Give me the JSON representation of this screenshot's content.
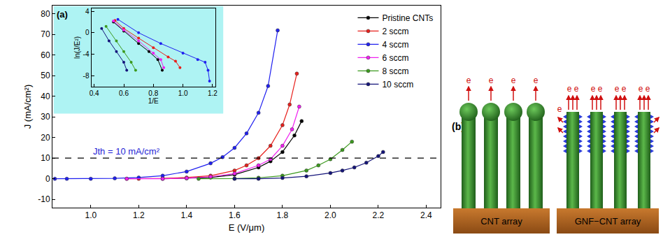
{
  "chart_data": [
    {
      "type": "line",
      "panel_label": "(a)",
      "x_label": "E (V/μm)",
      "y_label": "J (mA/cm²)",
      "xlim": [
        0.84,
        2.46
      ],
      "xticks": [
        {
          "value": 1,
          "label": "1.0"
        },
        1.2,
        1.4,
        1.6,
        1.8,
        {
          "value": 2,
          "label": "2.0"
        },
        2.2,
        2.4
      ],
      "ylim": [
        -14,
        84
      ],
      "yticks": [
        -10,
        0,
        10,
        20,
        30,
        40,
        50,
        60,
        70,
        80
      ],
      "grid": false,
      "legend": "upper right",
      "marker": "circle",
      "reference_line": {
        "y": 10,
        "label": "Jth = 10 mA/cm²",
        "color": "#1f1fd6"
      },
      "series": [
        {
          "name": "Pristine CNTs",
          "color": "#000000",
          "x": [
            1.3,
            1.4,
            1.5,
            1.6,
            1.7,
            1.75,
            1.8,
            1.85,
            1.88
          ],
          "values": [
            0,
            0.2,
            0.6,
            2,
            5.5,
            8.5,
            13,
            21,
            28
          ]
        },
        {
          "name": "2 sccm",
          "color": "#e8201c",
          "x": [
            1.15,
            1.2,
            1.3,
            1.4,
            1.5,
            1.6,
            1.65,
            1.7,
            1.75,
            1.8,
            1.83,
            1.86
          ],
          "values": [
            0,
            0,
            0.2,
            0.6,
            1.5,
            4,
            6.5,
            10,
            16,
            26,
            36,
            51
          ]
        },
        {
          "name": "4 sccm",
          "color": "#2020f0",
          "x": [
            0.85,
            0.9,
            1.0,
            1.1,
            1.2,
            1.3,
            1.4,
            1.5,
            1.55,
            1.6,
            1.65,
            1.7,
            1.74,
            1.78
          ],
          "values": [
            0,
            0,
            0,
            0.2,
            0.6,
            1.5,
            3.5,
            7.5,
            10.5,
            15,
            22,
            32,
            45,
            72
          ]
        },
        {
          "name": "6 sccm",
          "color": "#f020f0",
          "x": [
            1.15,
            1.3,
            1.4,
            1.5,
            1.6,
            1.7,
            1.75,
            1.8,
            1.84,
            1.87
          ],
          "values": [
            0,
            0,
            0.3,
            1,
            2.5,
            6.5,
            9.5,
            16,
            24,
            35
          ]
        },
        {
          "name": "8 sccm",
          "color": "#3c9a1e",
          "x": [
            1.45,
            1.6,
            1.7,
            1.8,
            1.9,
            1.95,
            2.0,
            2.05,
            2.09
          ],
          "values": [
            0,
            0.1,
            0.5,
            1.5,
            4,
            6.5,
            9.5,
            14,
            18
          ]
        },
        {
          "name": "10 sccm",
          "color": "#14147a",
          "x": [
            1.6,
            1.7,
            1.8,
            1.9,
            2.0,
            2.05,
            2.1,
            2.15,
            2.2,
            2.22
          ],
          "values": [
            0,
            0,
            0.4,
            1.2,
            2.8,
            4,
            5.5,
            7.8,
            11,
            13
          ]
        }
      ]
    },
    {
      "type": "line",
      "x_label": "1/E",
      "y_label": "ln(J/E²)",
      "xlim": [
        0.38,
        1.22
      ],
      "xticks": [
        0.4,
        0.6,
        0.8,
        {
          "value": 1,
          "label": "1.0"
        },
        1.2
      ],
      "ylim": [
        -10,
        4.5
      ],
      "yticks": [
        -8,
        -4,
        0,
        4
      ],
      "grid": false,
      "marker": "circle",
      "color": "#aef3f3",
      "series": [
        {
          "color": "#000000",
          "x": [
            0.53,
            0.6,
            0.7,
            0.77,
            0.83,
            0.86
          ],
          "values": [
            2.0,
            0.3,
            -2,
            -3.5,
            -5,
            -7
          ]
        },
        {
          "color": "#e8201c",
          "x": [
            0.54,
            0.6,
            0.7,
            0.8,
            0.9,
            0.95,
            0.98
          ],
          "values": [
            2.3,
            0.8,
            -1,
            -2.8,
            -4.5,
            -5.3,
            -6.5
          ]
        },
        {
          "color": "#2020f0",
          "x": [
            0.56,
            0.7,
            0.85,
            1.0,
            1.1,
            1.15,
            1.17,
            1.18
          ],
          "values": [
            2.5,
            0,
            -2,
            -3.8,
            -5,
            -5.5,
            -7,
            -9
          ]
        },
        {
          "color": "#f020f0",
          "x": [
            0.53,
            0.6,
            0.7,
            0.8,
            0.85,
            0.87
          ],
          "values": [
            2.2,
            0.5,
            -1.5,
            -3.8,
            -5,
            -6.5
          ]
        },
        {
          "color": "#3c9a1e",
          "x": [
            0.48,
            0.55,
            0.6,
            0.65,
            0.68
          ],
          "values": [
            1.2,
            -1.5,
            -3.5,
            -5.5,
            -7
          ]
        },
        {
          "color": "#14147a",
          "x": [
            0.45,
            0.5,
            0.55,
            0.6,
            0.62
          ],
          "values": [
            0.8,
            -1.5,
            -3.5,
            -5.5,
            -7
          ]
        }
      ]
    }
  ],
  "diagram": {
    "panel_label": "(b)",
    "arrays": [
      {
        "label": "CNT array"
      },
      {
        "label": "GNF−CNT array"
      }
    ],
    "electron_label": "e"
  }
}
